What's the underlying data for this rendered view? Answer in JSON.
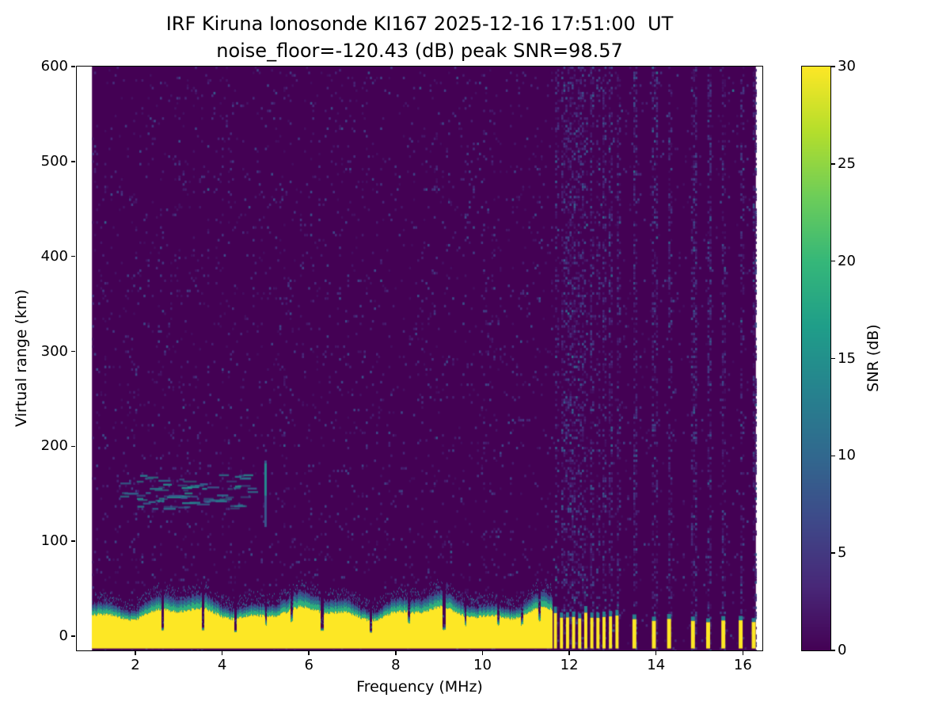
{
  "chart_data": {
    "type": "heatmap",
    "title": "IRF Kiruna Ionosonde KI167 2025-12-16 17:51:00  UT",
    "subtitle": "noise_floor=-120.43 (dB) peak SNR=98.57",
    "xlabel": "Frequency (MHz)",
    "ylabel": "Virtual range (km)",
    "colorbar_label": "SNR (dB)",
    "xlim": [
      0.65,
      16.45
    ],
    "ylim": [
      -15,
      600
    ],
    "clim": [
      0,
      30
    ],
    "xticks": [
      2,
      4,
      6,
      8,
      10,
      12,
      14,
      16
    ],
    "yticks": [
      0,
      100,
      200,
      300,
      400,
      500,
      600
    ],
    "colorbar_ticks": [
      0,
      5,
      10,
      15,
      20,
      25,
      30
    ],
    "colormap": "viridis",
    "colormap_stops": [
      "#440154",
      "#482878",
      "#3e4989",
      "#31688e",
      "#26828e",
      "#1f9e89",
      "#35b779",
      "#6dcd59",
      "#b4de2c",
      "#fde725"
    ],
    "grid": false,
    "legend": "none",
    "data_extent": {
      "freq_mhz": [
        1.0,
        16.3
      ],
      "range_km": [
        -13,
        600
      ]
    },
    "features": {
      "background_snr_db": 0,
      "noise_speckle": {
        "probability_low_freq": 0.055,
        "probability_high_freq": 0.028,
        "stripe_probability": 0.33,
        "snr_db_max": 8
      },
      "ground_clutter_band": {
        "freq_mhz": [
          1.0,
          11.62
        ],
        "range_km_top_mean": 36,
        "snr_db": 30,
        "notch_freqs_mhz": [
          2.62,
          3.55,
          4.3,
          6.3,
          7.42,
          9.1
        ],
        "partial_notch_freqs_mhz": [
          5.0,
          5.6,
          8.3,
          9.6,
          10.35,
          10.9,
          11.3
        ]
      },
      "rfi_stripes_mhz": [
        11.68,
        11.82,
        11.96,
        12.1,
        12.24,
        12.38,
        12.52,
        12.66,
        12.8,
        12.95,
        13.1,
        13.5,
        13.95,
        14.3,
        14.85,
        15.2,
        15.55,
        15.95,
        16.25
      ],
      "rfi_dense_until_mhz": 13.3,
      "e_region_echo": {
        "freq_mhz": [
          1.6,
          4.6
        ],
        "range_km": [
          135,
          172
        ],
        "snr_db": 12
      },
      "vertical_streak": {
        "freq_mhz": 5.0,
        "range_km": [
          115,
          185
        ],
        "snr_db": 10
      }
    }
  }
}
